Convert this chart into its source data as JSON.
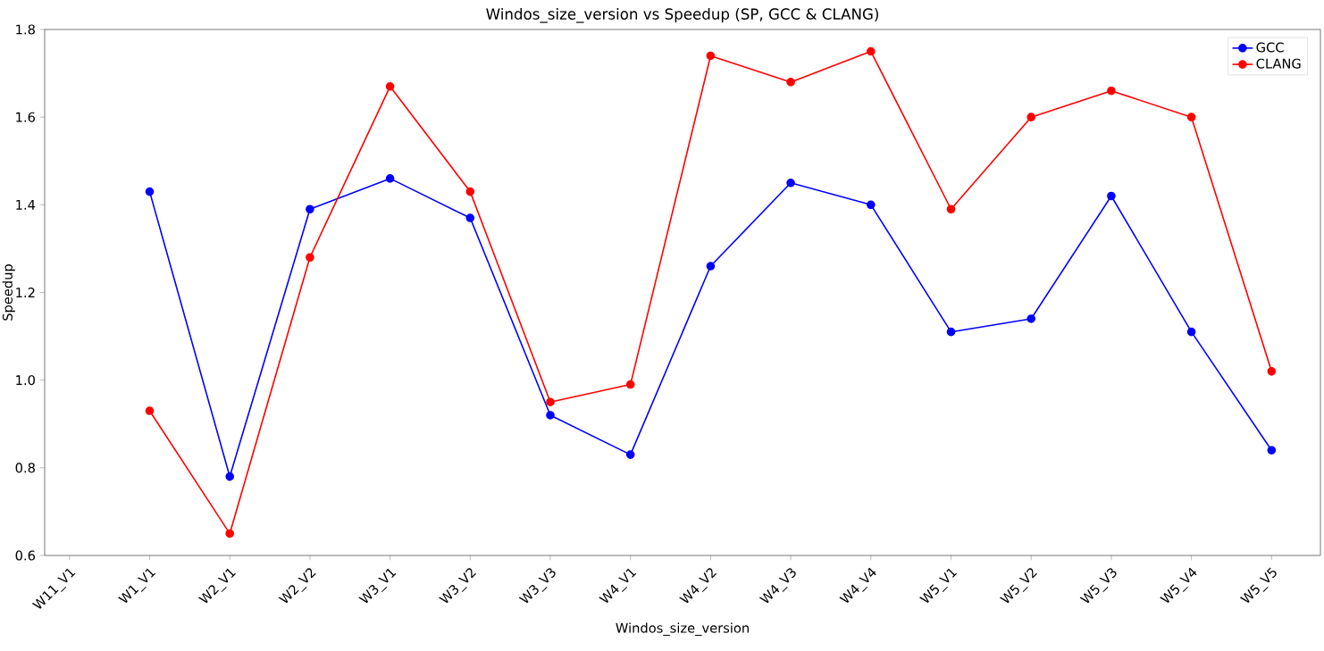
{
  "chart_data": {
    "type": "line",
    "title": "Windos_size_version vs Speedup (SP, GCC & CLANG)",
    "xlabel": "Windos_size_version",
    "ylabel": "Speedup",
    "categories": [
      "W11_V1",
      "W1_V1",
      "W2_V1",
      "W2_V2",
      "W3_V1",
      "W3_V2",
      "W3_V3",
      "W4_V1",
      "W4_V2",
      "W4_V3",
      "W4_V4",
      "W5_V1",
      "W5_V2",
      "W5_V3",
      "W5_V4",
      "W5_V5"
    ],
    "series": [
      {
        "name": "GCC",
        "color": "#0000ff",
        "values": [
          null,
          1.43,
          0.78,
          1.39,
          1.46,
          1.37,
          0.92,
          0.83,
          1.26,
          1.45,
          1.4,
          1.11,
          1.14,
          1.42,
          1.11,
          0.84
        ]
      },
      {
        "name": "CLANG",
        "color": "#ff0000",
        "values": [
          null,
          0.93,
          0.65,
          1.28,
          1.67,
          1.43,
          0.95,
          0.99,
          1.74,
          1.68,
          1.75,
          1.39,
          1.6,
          1.66,
          1.6,
          1.02
        ]
      }
    ],
    "ylim": [
      0.6,
      1.8
    ],
    "yticks": [
      0.6,
      0.8,
      {
        "value": 1.0,
        "label": "1.0"
      },
      1.2,
      1.4,
      1.6,
      1.8
    ],
    "marker": "circle",
    "line_style": "solid",
    "legend": "top right",
    "grid": false
  }
}
